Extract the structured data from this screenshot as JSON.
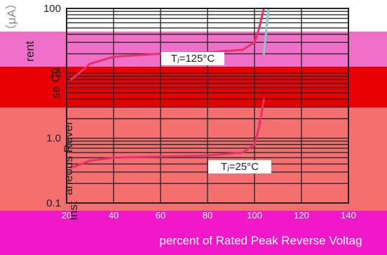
{
  "chart_data": {
    "type": "line",
    "title": "",
    "xlabel": "percent of Rated Peak Reverse Voltag",
    "ylabel": "Instantaneous Reverse Current (μA)",
    "ylabel_visible_parts": [
      "（μA）",
      "rent",
      "se Cu",
      "aneous Rever",
      "Inst"
    ],
    "y_scale": "log",
    "ylim": [
      0.1,
      100
    ],
    "xlim": [
      20,
      140
    ],
    "ytick_labels": [
      "100",
      "10",
      "1.0",
      "0.1"
    ],
    "ytick_values": [
      100,
      10,
      1,
      0.1
    ],
    "xtick_labels": [
      "20",
      "40",
      "60",
      "80",
      "100",
      "120",
      "140"
    ],
    "xtick_values": [
      20,
      40,
      60,
      80,
      100,
      120,
      140
    ],
    "grid": true,
    "series": [
      {
        "name": "TJ=125°C",
        "label": "Tⱼ=125°C",
        "color": "#e8306a",
        "x": [
          22,
          30,
          40,
          60,
          80,
          95,
          100,
          102,
          104
        ],
        "y": [
          8.0,
          14.0,
          18.0,
          20.0,
          21.0,
          23.0,
          30.0,
          50.0,
          100.0
        ]
      },
      {
        "name": "TJ=25°C",
        "label": "Tⱼ=25°C",
        "color": "#e8306a",
        "x": [
          22,
          30,
          40,
          60,
          80,
          95,
          100,
          102,
          104
        ],
        "y": [
          0.35,
          0.45,
          0.5,
          0.52,
          0.54,
          0.6,
          0.8,
          1.5,
          4.0
        ]
      }
    ],
    "unlabeled_marks": [
      {
        "color": "#88c8c8",
        "x": [
          104,
          106
        ],
        "y": [
          20,
          100
        ]
      }
    ]
  },
  "decor": {
    "bg": "#ffffff",
    "band_pink": "#f070c8",
    "band_magenta": "#f018c8",
    "band_red": "#e80000",
    "band_salmon": "#f47070",
    "band_rose": "#f04888"
  }
}
